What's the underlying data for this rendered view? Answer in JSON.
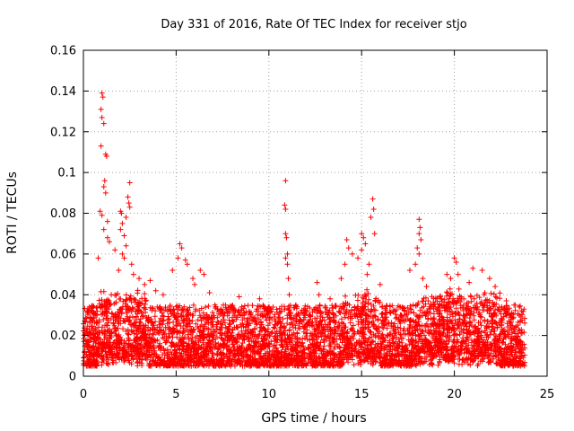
{
  "chart_data": {
    "type": "scatter",
    "title": "Day 331 of 2016, Rate Of TEC Index for receiver stjo",
    "xlabel": "GPS time / hours",
    "ylabel": "ROTI / TECUs",
    "xlim": [
      0,
      25
    ],
    "ylim": [
      0,
      0.16
    ],
    "x_ticks": [
      0,
      5,
      10,
      15,
      20,
      25
    ],
    "x_tick_labels": [
      "0",
      "5",
      "10",
      "15",
      "20",
      "25"
    ],
    "y_ticks": [
      0,
      0.02,
      0.04,
      0.06,
      0.08,
      0.1,
      0.12,
      0.14,
      0.16
    ],
    "y_tick_labels": [
      "0",
      "0.02",
      "0.04",
      "0.06",
      "0.08",
      "0.1",
      "0.12",
      "0.14",
      "0.16"
    ],
    "grid": true,
    "marker": "+",
    "color": "#ff0000",
    "x_range_of_data": [
      0,
      23.8
    ],
    "baseline_band": [
      0.005,
      0.035
    ],
    "series": [
      {
        "name": "ROTI",
        "points": [
          [
            1.0,
            0.139
          ],
          [
            1.05,
            0.137
          ],
          [
            0.95,
            0.131
          ],
          [
            1.0,
            0.127
          ],
          [
            1.1,
            0.124
          ],
          [
            0.95,
            0.113
          ],
          [
            1.2,
            0.109
          ],
          [
            1.25,
            0.108
          ],
          [
            1.15,
            0.096
          ],
          [
            1.1,
            0.093
          ],
          [
            1.2,
            0.09
          ],
          [
            0.9,
            0.081
          ],
          [
            1.0,
            0.079
          ],
          [
            1.3,
            0.076
          ],
          [
            1.1,
            0.072
          ],
          [
            1.3,
            0.068
          ],
          [
            1.4,
            0.066
          ],
          [
            1.7,
            0.062
          ],
          [
            0.8,
            0.058
          ],
          [
            2.0,
            0.081
          ],
          [
            2.05,
            0.08
          ],
          [
            2.1,
            0.075
          ],
          [
            2.0,
            0.072
          ],
          [
            2.2,
            0.069
          ],
          [
            2.3,
            0.064
          ],
          [
            2.1,
            0.06
          ],
          [
            2.2,
            0.058
          ],
          [
            1.9,
            0.052
          ],
          [
            2.5,
            0.095
          ],
          [
            2.4,
            0.088
          ],
          [
            2.45,
            0.085
          ],
          [
            2.5,
            0.083
          ],
          [
            2.3,
            0.078
          ],
          [
            2.6,
            0.055
          ],
          [
            2.7,
            0.05
          ],
          [
            3.0,
            0.048
          ],
          [
            3.3,
            0.045
          ],
          [
            3.6,
            0.047
          ],
          [
            3.9,
            0.042
          ],
          [
            4.3,
            0.04
          ],
          [
            5.2,
            0.065
          ],
          [
            5.3,
            0.063
          ],
          [
            5.1,
            0.058
          ],
          [
            5.5,
            0.057
          ],
          [
            5.6,
            0.055
          ],
          [
            5.9,
            0.048
          ],
          [
            6.0,
            0.045
          ],
          [
            6.3,
            0.052
          ],
          [
            6.5,
            0.05
          ],
          [
            4.8,
            0.052
          ],
          [
            6.8,
            0.041
          ],
          [
            8.4,
            0.039
          ],
          [
            9.5,
            0.038
          ],
          [
            10.9,
            0.096
          ],
          [
            10.85,
            0.084
          ],
          [
            10.9,
            0.082
          ],
          [
            10.9,
            0.07
          ],
          [
            10.95,
            0.068
          ],
          [
            11.0,
            0.06
          ],
          [
            10.9,
            0.058
          ],
          [
            11.0,
            0.055
          ],
          [
            11.05,
            0.048
          ],
          [
            11.1,
            0.04
          ],
          [
            12.6,
            0.046
          ],
          [
            12.7,
            0.04
          ],
          [
            13.3,
            0.038
          ],
          [
            13.9,
            0.048
          ],
          [
            14.2,
            0.067
          ],
          [
            14.3,
            0.063
          ],
          [
            14.1,
            0.055
          ],
          [
            14.5,
            0.06
          ],
          [
            14.8,
            0.058
          ],
          [
            15.0,
            0.07
          ],
          [
            15.1,
            0.068
          ],
          [
            15.2,
            0.065
          ],
          [
            15.0,
            0.062
          ],
          [
            15.6,
            0.087
          ],
          [
            15.65,
            0.082
          ],
          [
            15.5,
            0.078
          ],
          [
            15.7,
            0.07
          ],
          [
            15.4,
            0.055
          ],
          [
            15.3,
            0.05
          ],
          [
            16.0,
            0.045
          ],
          [
            16.8,
            0.032
          ],
          [
            17.4,
            0.03
          ],
          [
            18.1,
            0.077
          ],
          [
            18.15,
            0.073
          ],
          [
            18.1,
            0.07
          ],
          [
            18.2,
            0.067
          ],
          [
            18.0,
            0.063
          ],
          [
            18.1,
            0.06
          ],
          [
            17.9,
            0.055
          ],
          [
            17.6,
            0.052
          ],
          [
            18.3,
            0.048
          ],
          [
            18.5,
            0.044
          ],
          [
            19.3,
            0.038
          ],
          [
            20.0,
            0.058
          ],
          [
            20.1,
            0.056
          ],
          [
            20.2,
            0.05
          ],
          [
            19.6,
            0.05
          ],
          [
            19.8,
            0.048
          ],
          [
            21.0,
            0.053
          ],
          [
            21.5,
            0.052
          ],
          [
            21.9,
            0.048
          ],
          [
            22.2,
            0.044
          ],
          [
            20.8,
            0.046
          ],
          [
            22.8,
            0.037
          ],
          [
            23.5,
            0.034
          ]
        ]
      }
    ]
  }
}
